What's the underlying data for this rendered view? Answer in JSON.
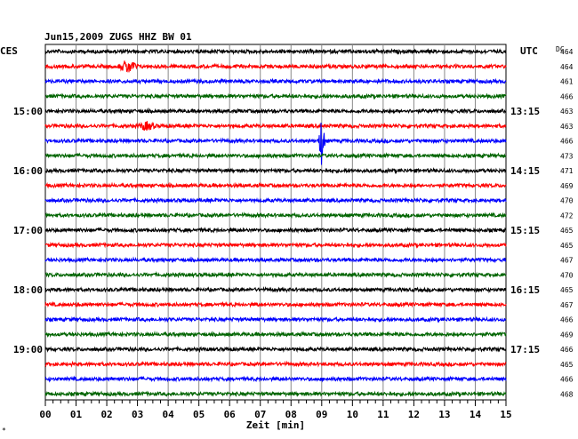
{
  "header": {
    "title": "Jun15,2009   ZUGS HHZ BW 01",
    "left_tz": "CES",
    "right_tz": "UTC",
    "dc_label": "DC"
  },
  "chart_data": {
    "type": "line",
    "title": "Jun15,2009   ZUGS HHZ BW 01",
    "xlabel": "Zeit [min]",
    "xlim": [
      0,
      15
    ],
    "x_ticks": [
      "00",
      "01",
      "02",
      "03",
      "04",
      "05",
      "06",
      "07",
      "08",
      "09",
      "10",
      "11",
      "12",
      "13",
      "14",
      "15"
    ],
    "trace_colors": [
      "#000000",
      "#ff0000",
      "#0000ff",
      "#006400"
    ],
    "rows": 24,
    "left_time_labels": [
      {
        "row": 4,
        "label": "15:00"
      },
      {
        "row": 8,
        "label": "16:00"
      },
      {
        "row": 12,
        "label": "17:00"
      },
      {
        "row": 16,
        "label": "18:00"
      },
      {
        "row": 20,
        "label": "19:00"
      }
    ],
    "right_time_labels": [
      {
        "row": 4,
        "label": "13:15"
      },
      {
        "row": 8,
        "label": "14:15"
      },
      {
        "row": 12,
        "label": "15:15"
      },
      {
        "row": 16,
        "label": "16:15"
      },
      {
        "row": 20,
        "label": "17:15"
      }
    ],
    "dc_values": [
      "464",
      "464",
      "461",
      "466",
      "463",
      "463",
      "466",
      "473",
      "471",
      "469",
      "470",
      "472",
      "465",
      "465",
      "467",
      "470",
      "465",
      "467",
      "466",
      "469",
      "466",
      "465",
      "466",
      "468"
    ],
    "events": [
      {
        "row": 1,
        "minute": 2.7,
        "amplitude": "medium"
      },
      {
        "row": 5,
        "minute": 3.3,
        "amplitude": "small"
      },
      {
        "row": 6,
        "minute": 9.0,
        "amplitude": "large"
      }
    ],
    "grid": true
  },
  "footer": {
    "corner_mark": "*"
  }
}
